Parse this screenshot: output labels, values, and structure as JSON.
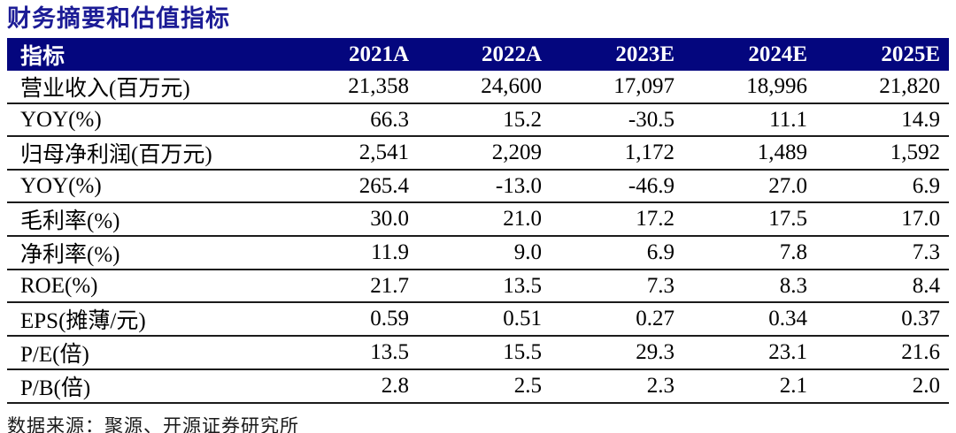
{
  "page": {
    "title": "财务摘要和估值指标",
    "source_note": "数据来源：聚源、开源证券研究所"
  },
  "colors": {
    "header_bg": "#04067e",
    "header_text": "#ffffff",
    "title_color": "#1c1c96",
    "row_border": "#1b1b1b"
  },
  "table": {
    "header": [
      "指标",
      "2021A",
      "2022A",
      "2023E",
      "2024E",
      "2025E"
    ],
    "rows": [
      {
        "label": "营业收入(百万元)",
        "values": [
          "21,358",
          "24,600",
          "17,097",
          "18,996",
          "21,820"
        ]
      },
      {
        "label": "YOY(%)",
        "values": [
          "66.3",
          "15.2",
          "-30.5",
          "11.1",
          "14.9"
        ]
      },
      {
        "label": "归母净利润(百万元)",
        "values": [
          "2,541",
          "2,209",
          "1,172",
          "1,489",
          "1,592"
        ]
      },
      {
        "label": "YOY(%)",
        "values": [
          "265.4",
          "-13.0",
          "-46.9",
          "27.0",
          "6.9"
        ]
      },
      {
        "label": "毛利率(%)",
        "values": [
          "30.0",
          "21.0",
          "17.2",
          "17.5",
          "17.0"
        ]
      },
      {
        "label": "净利率(%)",
        "values": [
          "11.9",
          "9.0",
          "6.9",
          "7.8",
          "7.3"
        ]
      },
      {
        "label": "ROE(%)",
        "values": [
          "21.7",
          "13.5",
          "7.3",
          "8.3",
          "8.4"
        ]
      },
      {
        "label": "EPS(摊薄/元)",
        "values": [
          "0.59",
          "0.51",
          "0.27",
          "0.34",
          "0.37"
        ]
      },
      {
        "label": "P/E(倍)",
        "values": [
          "13.5",
          "15.5",
          "29.3",
          "23.1",
          "21.6"
        ]
      },
      {
        "label": "P/B(倍)",
        "values": [
          "2.8",
          "2.5",
          "2.3",
          "2.1",
          "2.0"
        ]
      }
    ]
  }
}
